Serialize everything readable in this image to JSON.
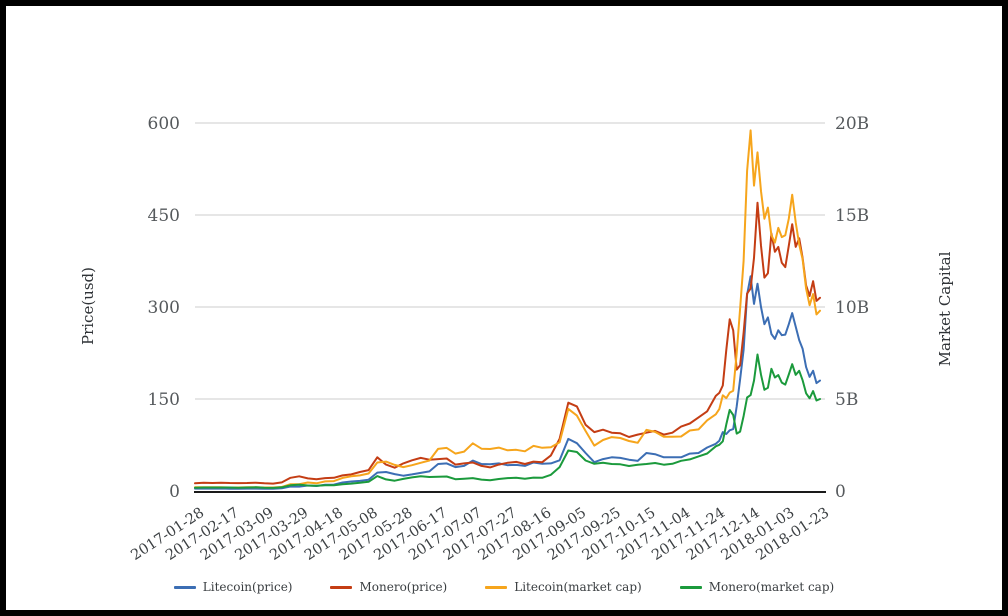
{
  "chart_data": {
    "type": "line",
    "title": "",
    "ylabel_left": "Price(usd)",
    "ylabel_right": "Market Capital",
    "legend_position": "bottom",
    "grid": true,
    "axis_ranges": {
      "x_days": [
        0,
        360
      ],
      "y_left": [
        0,
        600
      ],
      "y_right_billions": [
        0,
        20
      ]
    },
    "y_left_ticks": [
      {
        "value": 0,
        "label": "0"
      },
      {
        "value": 150,
        "label": "150"
      },
      {
        "value": 300,
        "label": "300"
      },
      {
        "value": 450,
        "label": "450"
      },
      {
        "value": 600,
        "label": "600"
      }
    ],
    "y_right_ticks": [
      {
        "value": 0,
        "label": "0"
      },
      {
        "value": 5,
        "label": "5B"
      },
      {
        "value": 10,
        "label": "10B"
      },
      {
        "value": 15,
        "label": "15B"
      },
      {
        "value": 20,
        "label": "20B"
      }
    ],
    "x_tick_days": [
      0,
      20,
      40,
      60,
      80,
      100,
      120,
      140,
      160,
      180,
      200,
      220,
      240,
      260,
      280,
      300,
      320,
      340,
      360
    ],
    "x_tick_labels": [
      "2017-01-28",
      "2017-02-17",
      "2017-03-09",
      "2017-03-29",
      "2017-04-18",
      "2017-05-08",
      "2017-05-28",
      "2017-06-17",
      "2017-07-07",
      "2017-07-27",
      "2017-08-16",
      "2017-09-05",
      "2017-09-25",
      "2017-10-15",
      "2017-11-04",
      "2017-11-24",
      "2017-12-14",
      "2018-01-03",
      "2018-01-23"
    ],
    "x_days": [
      0,
      5,
      10,
      15,
      20,
      25,
      30,
      35,
      40,
      45,
      50,
      55,
      60,
      65,
      70,
      75,
      80,
      85,
      90,
      95,
      100,
      105,
      110,
      115,
      120,
      125,
      130,
      135,
      140,
      145,
      150,
      155,
      160,
      165,
      170,
      175,
      180,
      185,
      190,
      195,
      200,
      205,
      210,
      215,
      220,
      225,
      230,
      235,
      240,
      245,
      250,
      255,
      260,
      265,
      270,
      275,
      280,
      285,
      290,
      295,
      300,
      302,
      304,
      306,
      308,
      310,
      312,
      314,
      316,
      318,
      320,
      322,
      324,
      326,
      328,
      330,
      332,
      334,
      336,
      338,
      340,
      342,
      344,
      346,
      348,
      350,
      352,
      354,
      356,
      358,
      360
    ],
    "series": [
      {
        "name": "Litecoin(price)",
        "axis": "left",
        "color": "#3c6eb4",
        "unit": "USD",
        "values": [
          3.9,
          4.0,
          3.9,
          4.0,
          3.8,
          3.8,
          3.9,
          3.9,
          3.8,
          3.7,
          4.4,
          7.3,
          7.2,
          9.0,
          8.1,
          10.2,
          10.5,
          13.9,
          15.5,
          16.5,
          18.5,
          30.0,
          31.0,
          27.5,
          25.0,
          27.0,
          29.5,
          32.0,
          44.0,
          45.0,
          39.0,
          41.0,
          49.5,
          44.0,
          43.5,
          45.0,
          42.0,
          42.5,
          41.0,
          46.5,
          44.5,
          45.0,
          50.0,
          85.0,
          78.0,
          62.0,
          47.0,
          52.0,
          55.0,
          54.0,
          51.0,
          49.0,
          62.0,
          60.0,
          55.0,
          55.0,
          55.0,
          61.0,
          62.0,
          71.0,
          77,
          82,
          96,
          93,
          99,
          101,
          138,
          182,
          230,
          320,
          350,
          305,
          338,
          300,
          272,
          283,
          256,
          248,
          262,
          254,
          255,
          272,
          290,
          268,
          246,
          232,
          202,
          186,
          196,
          176,
          180
        ]
      },
      {
        "name": "Monero(price)",
        "axis": "left",
        "color": "#c43d14",
        "unit": "USD",
        "values": [
          12.5,
          13.5,
          13.0,
          13.5,
          13.0,
          12.8,
          13.0,
          13.5,
          12.5,
          12.0,
          14.0,
          21.5,
          24.0,
          20.5,
          19.0,
          21.0,
          21.5,
          25.5,
          27.0,
          31.0,
          34.0,
          55.0,
          43.0,
          38.0,
          45.0,
          50.0,
          54.0,
          51.0,
          52.0,
          53.0,
          43.0,
          45.0,
          46.5,
          41.0,
          38.5,
          43.0,
          46.0,
          47.5,
          44.0,
          48.0,
          47.0,
          58.0,
          85.0,
          144.0,
          138.0,
          108.0,
          96.0,
          100.0,
          95.0,
          94.0,
          88.0,
          92.0,
          95.0,
          98.0,
          92.0,
          95.0,
          105.0,
          110.0,
          120.0,
          130.0,
          155,
          160,
          172,
          230,
          280,
          262,
          198,
          205,
          258,
          322,
          330,
          380,
          470,
          400,
          348,
          355,
          420,
          390,
          398,
          372,
          365,
          400,
          435,
          398,
          412,
          380,
          335,
          318,
          342,
          310,
          315
        ]
      },
      {
        "name": "Litecoin(market cap)",
        "axis": "right",
        "color": "#f6a51c",
        "unit": "B USD",
        "values": [
          0.2,
          0.2,
          0.2,
          0.2,
          0.19,
          0.19,
          0.2,
          0.2,
          0.19,
          0.19,
          0.22,
          0.37,
          0.37,
          0.46,
          0.42,
          0.52,
          0.54,
          0.71,
          0.8,
          0.85,
          0.95,
          1.55,
          1.6,
          1.42,
          1.3,
          1.4,
          1.53,
          1.66,
          2.29,
          2.34,
          2.03,
          2.14,
          2.59,
          2.3,
          2.28,
          2.36,
          2.21,
          2.24,
          2.16,
          2.45,
          2.35,
          2.38,
          2.65,
          4.46,
          4.1,
          3.26,
          2.47,
          2.77,
          2.93,
          2.88,
          2.72,
          2.62,
          3.32,
          3.21,
          2.95,
          2.95,
          2.96,
          3.29,
          3.35,
          3.84,
          4.17,
          4.45,
          5.2,
          5.05,
          5.35,
          5.45,
          7.5,
          9.9,
          12.5,
          17.4,
          19.6,
          16.6,
          18.4,
          16.3,
          14.8,
          15.4,
          13.9,
          13.5,
          14.3,
          13.8,
          13.9,
          14.8,
          16.1,
          14.6,
          13.4,
          12.6,
          11.0,
          10.1,
          10.7,
          9.6,
          9.8
        ]
      },
      {
        "name": "Monero(market cap)",
        "axis": "right",
        "color": "#1b9a3c",
        "unit": "B USD",
        "values": [
          0.18,
          0.19,
          0.19,
          0.19,
          0.19,
          0.18,
          0.19,
          0.2,
          0.18,
          0.17,
          0.2,
          0.31,
          0.35,
          0.3,
          0.28,
          0.31,
          0.31,
          0.37,
          0.4,
          0.45,
          0.5,
          0.81,
          0.63,
          0.56,
          0.66,
          0.74,
          0.8,
          0.76,
          0.77,
          0.79,
          0.64,
          0.67,
          0.7,
          0.62,
          0.58,
          0.65,
          0.7,
          0.72,
          0.67,
          0.73,
          0.72,
          0.88,
          1.3,
          2.2,
          2.12,
          1.66,
          1.48,
          1.54,
          1.47,
          1.45,
          1.36,
          1.43,
          1.47,
          1.52,
          1.43,
          1.48,
          1.64,
          1.72,
          1.88,
          2.04,
          2.43,
          2.51,
          2.7,
          3.62,
          4.41,
          4.13,
          3.12,
          3.23,
          4.07,
          5.08,
          5.21,
          6.0,
          7.42,
          6.32,
          5.5,
          5.61,
          6.64,
          6.17,
          6.3,
          5.89,
          5.78,
          6.33,
          6.89,
          6.31,
          6.53,
          6.02,
          5.31,
          5.04,
          5.43,
          4.92,
          5.0
        ]
      }
    ],
    "colors": {
      "grid": "#cccccc",
      "axis_line": "#1a1a1a",
      "tick_text": "#55595c"
    }
  }
}
